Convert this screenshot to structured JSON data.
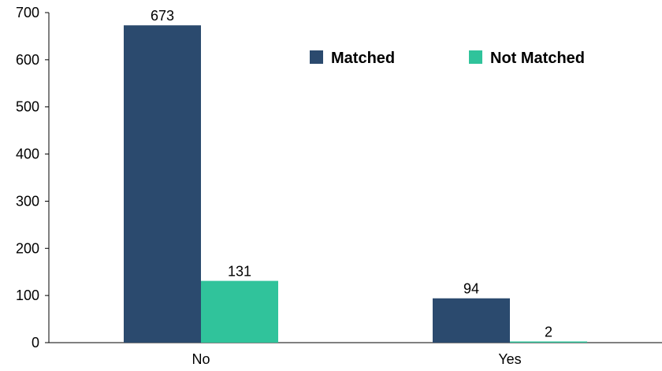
{
  "chart_data": {
    "type": "bar",
    "categories": [
      "No",
      "Yes"
    ],
    "series": [
      {
        "name": "Matched",
        "values": [
          673,
          94
        ],
        "color": "#2b4a6e"
      },
      {
        "name": "Not Matched",
        "values": [
          131,
          2
        ],
        "color": "#30c39b"
      }
    ],
    "y_ticks": [
      0,
      100,
      200,
      300,
      400,
      500,
      600,
      700
    ],
    "ylim": [
      0,
      700
    ],
    "grid": false,
    "legend_position": "top-right",
    "data_labels": true
  }
}
